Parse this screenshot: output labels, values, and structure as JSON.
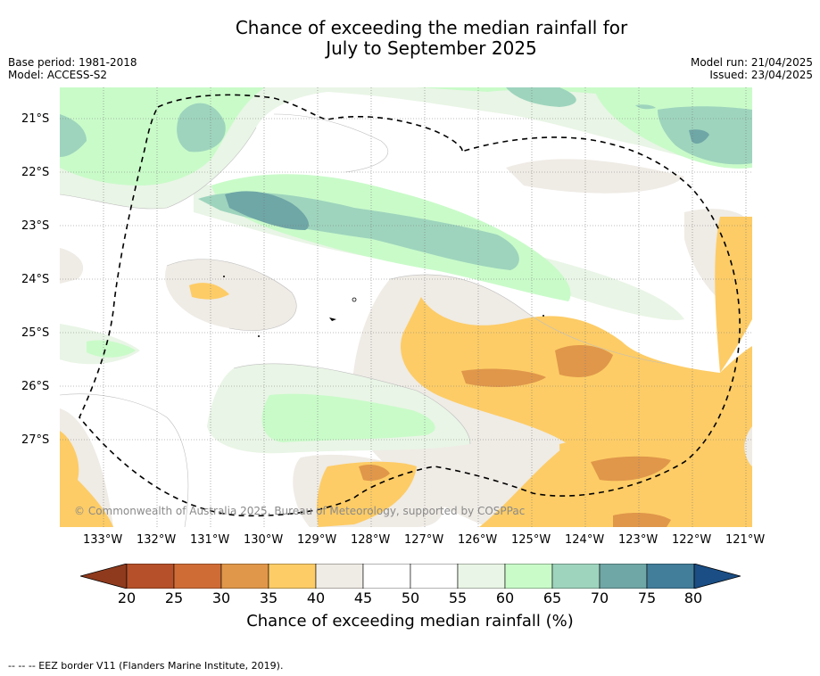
{
  "title": {
    "line1": "Chance of exceeding the median rainfall for",
    "line2": "July to September 2025"
  },
  "meta_left": {
    "base_period": "Base period: 1981-2018",
    "model": "Model: ACCESS-S2"
  },
  "meta_right": {
    "model_run": "Model run: 21/04/2025",
    "issued": "Issued: 23/04/2025"
  },
  "copyright": "© Commonwealth of Australia 2025, Bureau of Meteorology, supported by COSPPac",
  "map": {
    "lat_labels": [
      "21°S",
      "22°S",
      "23°S",
      "24°S",
      "25°S",
      "26°S",
      "27°S"
    ],
    "lon_labels": [
      "133°W",
      "132°W",
      "131°W",
      "130°W",
      "129°W",
      "128°W",
      "127°W",
      "126°W",
      "125°W",
      "124°W",
      "123°W",
      "122°W",
      "121°W"
    ]
  },
  "colorbar": {
    "ticks": [
      "20",
      "25",
      "30",
      "35",
      "40",
      "45",
      "50",
      "55",
      "60",
      "65",
      "70",
      "75",
      "80"
    ],
    "colors": [
      "#8f3a1d",
      "#b5502a",
      "#cf6c35",
      "#e0974a",
      "#fdcc66",
      "#efebe5",
      "#ffffff",
      "#ffffff",
      "#e9f5e6",
      "#c9fbc9",
      "#9ed4bd",
      "#6fa6a6",
      "#427d9a",
      "#1a4e84"
    ],
    "label": "Chance of exceeding median rainfall (%)"
  },
  "footer": "--  --  -- EEZ border V11 (Flanders Marine Institute, 2019)."
}
